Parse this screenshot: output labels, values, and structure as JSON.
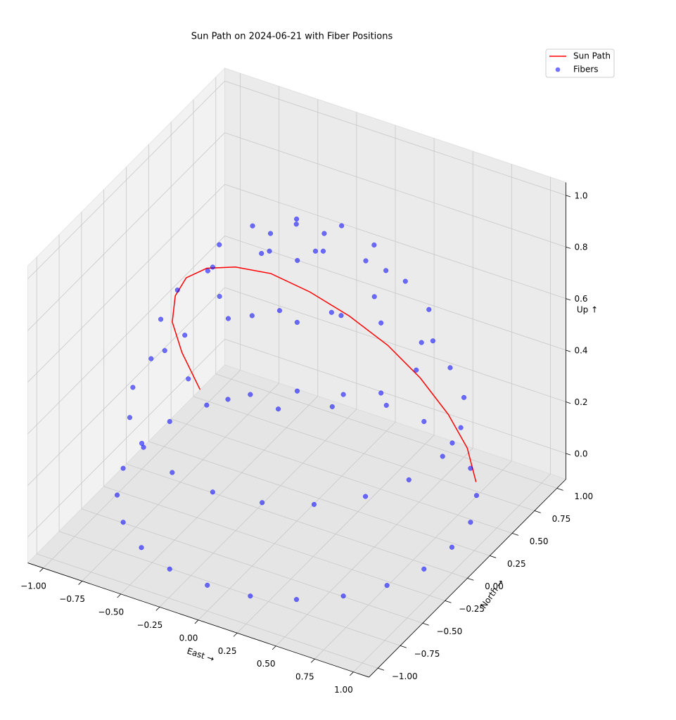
{
  "chart_data": {
    "type": "scatter3d",
    "title": "Sun Path on 2024-06-21 with Fiber Positions",
    "xlabel": "East →",
    "ylabel": "North →",
    "zlabel": "Up ↑",
    "xlim": [
      -1.1,
      1.1
    ],
    "ylim": [
      -1.1,
      1.1
    ],
    "zlim": [
      -0.1,
      1.05
    ],
    "xticks": [
      {
        "value": -1,
        "label": "−1.00"
      },
      {
        "value": -0.75,
        "label": "−0.75"
      },
      {
        "value": -0.5,
        "label": "−0.50"
      },
      {
        "value": -0.25,
        "label": "−0.25"
      },
      {
        "value": 0,
        "label": "0.00"
      },
      0.25,
      {
        "value": 0.5,
        "label": "0.50"
      },
      0.75,
      {
        "value": 1,
        "label": "1.00"
      }
    ],
    "yticks": [
      {
        "value": -1,
        "label": "−1.00"
      },
      {
        "value": -0.75,
        "label": "−0.75"
      },
      {
        "value": -0.5,
        "label": "−0.50"
      },
      {
        "value": -0.25,
        "label": "−0.25"
      },
      {
        "value": 0,
        "label": "0.00"
      },
      0.25,
      {
        "value": 0.5,
        "label": "0.50"
      },
      0.75,
      {
        "value": 1,
        "label": "1.00"
      }
    ],
    "zticks": [
      {
        "value": 0,
        "label": "0.0"
      },
      0.2,
      0.4,
      0.6,
      0.8,
      {
        "value": 1,
        "label": "1.0"
      }
    ],
    "grid": true,
    "legend": "upper right",
    "series": [
      {
        "name": "Sun Path",
        "type": "line",
        "color": "#ff0000",
        "x": [
          0.89,
          0.92,
          0.89,
          0.79,
          0.65,
          0.46,
          0.24,
          0,
          -0.24,
          -0.46,
          -0.65,
          -0.79,
          -0.89,
          -0.92,
          -0.89
        ],
        "y": [
          0.46,
          0.31,
          0.15,
          0.01,
          -0.11,
          -0.21,
          -0.27,
          -0.29,
          -0.27,
          -0.21,
          -0.11,
          0.01,
          0.15,
          0.31,
          0.46
        ],
        "z": [
          0.07,
          0.26,
          0.44,
          0.61,
          0.75,
          0.86,
          0.93,
          0.96,
          0.93,
          0.86,
          0.75,
          0.61,
          0.44,
          0.26,
          0.07
        ]
      },
      {
        "name": "Fibers",
        "type": "scatter",
        "color": "#0000ff",
        "x": [
          1,
          0.97,
          0.87,
          0.71,
          0.5,
          0.26,
          0,
          -0.26,
          -0.5,
          -0.71,
          -0.87,
          -0.97,
          -1,
          -0.97,
          -0.87,
          -0.71,
          -0.5,
          -0.26,
          0,
          0.26,
          0.5,
          0.71,
          0.87,
          0.97,
          0.94,
          0.89,
          0.76,
          0.55,
          0.29,
          0,
          -0.29,
          -0.55,
          -0.76,
          -0.89,
          -0.94,
          -0.89,
          -0.76,
          -0.55,
          -0.29,
          0,
          0.29,
          0.55,
          0.76,
          0.89,
          0.77,
          0.71,
          0.54,
          0.29,
          0,
          -0.29,
          -0.54,
          -0.71,
          -0.77,
          -0.71,
          -0.54,
          -0.29,
          0,
          0.29,
          0.54,
          0.71,
          0.5,
          0.43,
          0.25,
          0,
          -0.25,
          -0.43,
          -0.5,
          -0.43,
          -0.25,
          0,
          0.25,
          0.43,
          0.17,
          0.09,
          -0.09,
          -0.17,
          -0.09,
          0.09
        ],
        "y": [
          0,
          0.26,
          0.5,
          0.71,
          0.87,
          0.97,
          1,
          0.97,
          0.87,
          0.71,
          0.5,
          0.26,
          0,
          -0.26,
          -0.5,
          -0.71,
          -0.87,
          -0.97,
          -1,
          -0.97,
          -0.87,
          -0.71,
          -0.5,
          -0.26,
          0,
          0.29,
          0.55,
          0.76,
          0.89,
          0.94,
          0.89,
          0.76,
          0.55,
          0.29,
          0,
          -0.29,
          -0.55,
          -0.76,
          -0.89,
          -0.94,
          -0.89,
          -0.76,
          -0.55,
          -0.29,
          0,
          0.29,
          0.54,
          0.71,
          0.77,
          0.71,
          0.54,
          0.29,
          0,
          -0.29,
          -0.54,
          -0.71,
          -0.77,
          -0.71,
          -0.54,
          -0.29,
          0,
          0.25,
          0.43,
          0.5,
          0.43,
          0.25,
          0,
          -0.25,
          -0.43,
          -0.5,
          -0.43,
          -0.25,
          0,
          0.15,
          0.15,
          0,
          -0.15,
          -0.15
        ],
        "z": [
          0,
          0,
          0,
          0,
          0,
          0,
          0,
          0,
          0,
          0,
          0,
          0,
          0,
          0,
          0,
          0,
          0,
          0,
          0,
          0,
          0,
          0,
          0,
          0,
          0.34,
          0.34,
          0.34,
          0.34,
          0.34,
          0.34,
          0.34,
          0.34,
          0.34,
          0.34,
          0.34,
          0.34,
          0.34,
          0.34,
          0.34,
          0.34,
          0.34,
          0.34,
          0.34,
          0.34,
          0.64,
          0.64,
          0.64,
          0.64,
          0.64,
          0.64,
          0.64,
          0.64,
          0.64,
          0.64,
          0.64,
          0.64,
          0.64,
          0.64,
          0.64,
          0.64,
          0.87,
          0.87,
          0.87,
          0.87,
          0.87,
          0.87,
          0.87,
          0.87,
          0.87,
          0.87,
          0.87,
          0.87,
          0.98,
          0.98,
          0.98,
          0.98,
          0.98,
          0.98
        ]
      }
    ]
  }
}
